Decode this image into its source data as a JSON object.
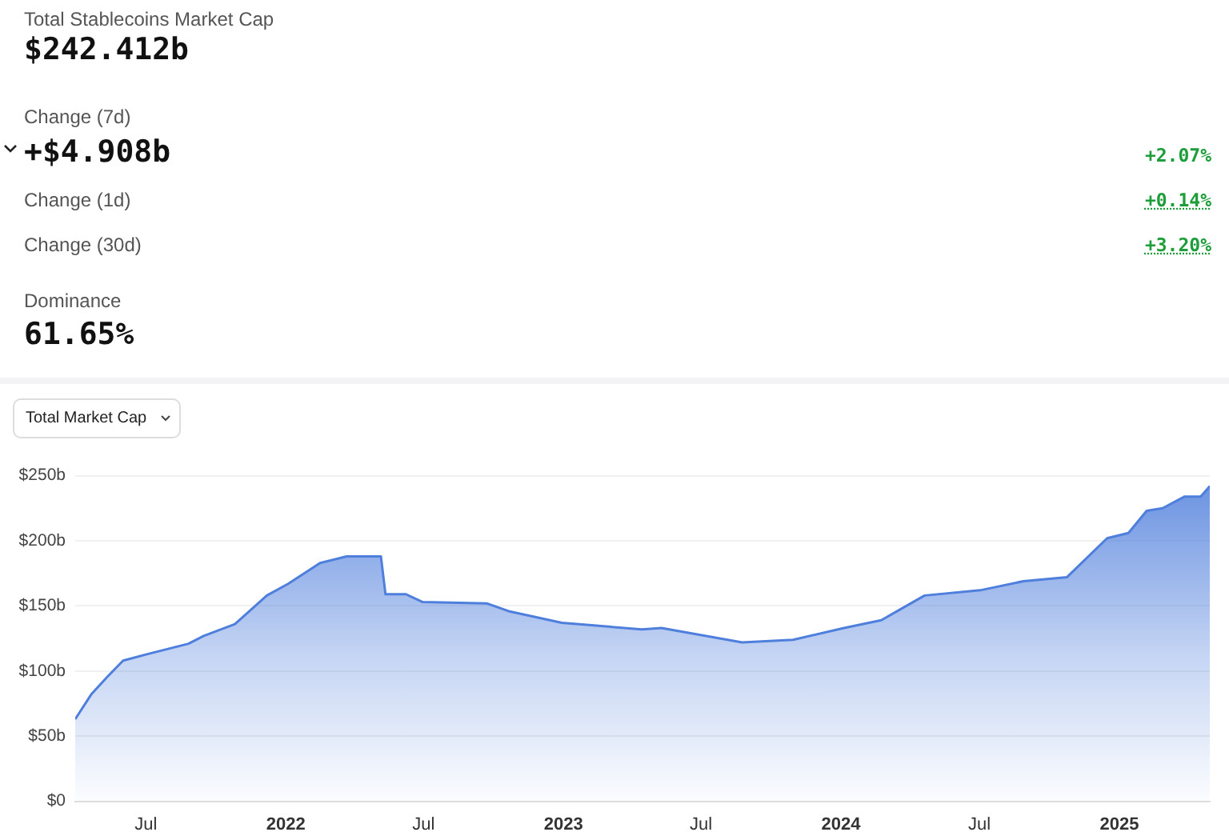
{
  "chart_data": {
    "type": "area",
    "title": "Total Stablecoins Market Cap",
    "subtitle": "$242.412b",
    "annotations": [
      "Change (7d)",
      "+$4.908b",
      "+2.07%",
      "Change (1d)",
      "+0.14%",
      "Change (30d)",
      "+3.20%",
      "Dominance",
      "61.65%",
      "Total Market Cap"
    ],
    "x": [
      "2021-03-30",
      "2021-04-20",
      "2021-05-12",
      "2021-06-01",
      "2021-07-03",
      "2021-08-26",
      "2021-09-15",
      "2021-10-26",
      "2021-12-07",
      "2022-01-04",
      "2022-02-15",
      "2022-03-22",
      "2022-05-06",
      "2022-05-12",
      "2022-06-08",
      "2022-06-30",
      "2022-09-22",
      "2022-10-21",
      "2022-12-30",
      "2023-04-14",
      "2023-05-10",
      "2023-08-24",
      "2023-10-30",
      "2024-01-05",
      "2024-02-23",
      "2024-03-15",
      "2024-04-20",
      "2024-07-02",
      "2024-08-28",
      "2024-10-24",
      "2024-12-16",
      "2025-01-13",
      "2025-02-06",
      "2025-02-27",
      "2025-03-28",
      "2025-04-18",
      "2025-04-30"
    ],
    "series": [
      {
        "color": "#4f7fdc",
        "values": [
          63,
          82,
          96,
          108,
          113,
          121,
          127,
          136,
          158,
          167,
          183,
          188,
          188,
          159,
          159,
          153,
          152,
          146,
          137,
          132,
          133,
          122,
          124,
          133,
          139,
          146,
          158,
          162,
          169,
          172,
          202,
          206,
          223,
          225,
          234,
          234,
          242
        ]
      }
    ],
    "xlim": [
      "2021-03-30",
      "2025-04-30"
    ],
    "xticks": [
      {
        "value": "2021-07",
        "label": "Jul"
      },
      {
        "value": "2022",
        "label": "2022"
      },
      {
        "value": "2022-07",
        "label": "Jul"
      },
      {
        "value": "2023",
        "label": "2023"
      },
      {
        "value": "2023-07",
        "label": "Jul"
      },
      {
        "value": "2024",
        "label": "2024"
      },
      {
        "value": "2024-07",
        "label": "Jul"
      },
      {
        "value": "2025",
        "label": "2025"
      }
    ],
    "ylim": [
      0,
      250
    ],
    "yticks": [
      {
        "value": 0,
        "label": "$0"
      },
      {
        "value": 50,
        "label": "$50b"
      },
      {
        "value": 100,
        "label": "$100b"
      },
      {
        "value": 150,
        "label": "$150b"
      },
      {
        "value": 200,
        "label": "$200b"
      },
      {
        "value": 250,
        "label": "$250b"
      }
    ],
    "grid": "y",
    "legend": false,
    "marker": "none",
    "line_style": "solid"
  }
}
